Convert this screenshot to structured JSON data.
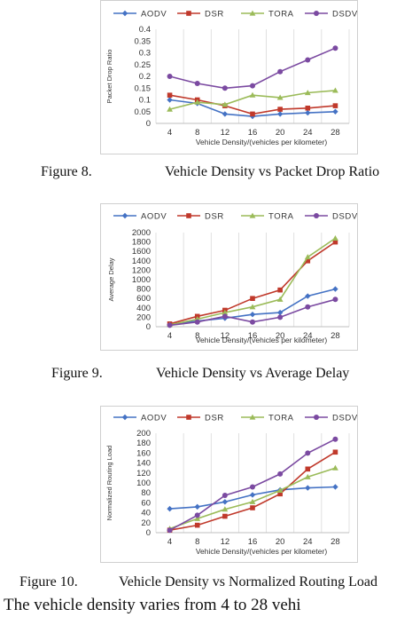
{
  "legend_colors": {
    "AODV": "#4472c4",
    "DSR": "#c0392b",
    "TORA": "#9bbb59",
    "DSDV": "#7b4aa1"
  },
  "figures": [
    {
      "number": "Figure 8.",
      "title": "Vehicle Density vs Packet Drop Ratio"
    },
    {
      "number": "Figure 9.",
      "title": "Vehicle Density vs Average Delay"
    },
    {
      "number": "Figure 10.",
      "title": "Vehicle Density vs Normalized Routing Load"
    }
  ],
  "body_text": "The vehicle density varies from 4 to 28 vehi",
  "chart_data": [
    {
      "type": "line",
      "xlabel": "Vehicle Density/(vehicles per kilometer)",
      "ylabel": "Packet Drop Ratio",
      "x": [
        4,
        8,
        12,
        16,
        20,
        24,
        28
      ],
      "ylim": [
        0,
        0.4
      ],
      "yticks": [
        "0",
        "0.05",
        "0.1",
        "0.15",
        "0.2",
        "0.25",
        "0.3",
        "0.35",
        "0.4"
      ],
      "ytick_values": [
        0,
        0.05,
        0.1,
        0.15,
        0.2,
        0.25,
        0.3,
        0.35,
        0.4
      ],
      "grid": true,
      "legend_position": "top",
      "series": [
        {
          "name": "AODV",
          "values": [
            0.1,
            0.085,
            0.04,
            0.03,
            0.04,
            0.045,
            0.05
          ]
        },
        {
          "name": "DSR",
          "values": [
            0.12,
            0.1,
            0.075,
            0.04,
            0.06,
            0.065,
            0.075
          ]
        },
        {
          "name": "TORA",
          "values": [
            0.06,
            0.09,
            0.08,
            0.12,
            0.11,
            0.13,
            0.14
          ]
        },
        {
          "name": "DSDV",
          "values": [
            0.2,
            0.17,
            0.15,
            0.16,
            0.22,
            0.27,
            0.32
          ]
        }
      ]
    },
    {
      "type": "line",
      "xlabel": "Vehicle Density/(vehicles per kilometer)",
      "ylabel": "Average Delay",
      "x": [
        4,
        8,
        12,
        16,
        20,
        24,
        28
      ],
      "ylim": [
        0,
        2000
      ],
      "yticks": [
        "0",
        "200",
        "400",
        "600",
        "800",
        "1000",
        "1200",
        "1400",
        "1600",
        "1800",
        "2000"
      ],
      "ytick_values": [
        0,
        200,
        400,
        600,
        800,
        1000,
        1200,
        1400,
        1600,
        1800,
        2000
      ],
      "grid": true,
      "legend_position": "top",
      "series": [
        {
          "name": "AODV",
          "values": [
            50,
            120,
            180,
            260,
            300,
            650,
            800
          ]
        },
        {
          "name": "DSR",
          "values": [
            60,
            220,
            350,
            600,
            780,
            1400,
            1800
          ]
        },
        {
          "name": "TORA",
          "values": [
            40,
            160,
            300,
            420,
            580,
            1480,
            1880
          ]
        },
        {
          "name": "DSDV",
          "values": [
            30,
            100,
            220,
            100,
            200,
            420,
            580
          ]
        }
      ]
    },
    {
      "type": "line",
      "xlabel": "Vehicle Density/(vehicles per kilometer)",
      "ylabel": "Normalized Routing Load",
      "x": [
        4,
        8,
        12,
        16,
        20,
        24,
        28
      ],
      "ylim": [
        0,
        200
      ],
      "yticks": [
        "0",
        "20",
        "40",
        "60",
        "80",
        "100",
        "120",
        "140",
        "160",
        "180",
        "200"
      ],
      "ytick_values": [
        0,
        20,
        40,
        60,
        80,
        100,
        120,
        140,
        160,
        180,
        200
      ],
      "grid": true,
      "legend_position": "top",
      "series": [
        {
          "name": "AODV",
          "values": [
            48,
            52,
            62,
            76,
            86,
            90,
            92
          ]
        },
        {
          "name": "DSR",
          "values": [
            5,
            15,
            33,
            50,
            78,
            128,
            162
          ]
        },
        {
          "name": "TORA",
          "values": [
            8,
            28,
            47,
            62,
            85,
            112,
            130
          ]
        },
        {
          "name": "DSDV",
          "values": [
            5,
            35,
            75,
            92,
            118,
            160,
            188
          ]
        }
      ]
    }
  ]
}
